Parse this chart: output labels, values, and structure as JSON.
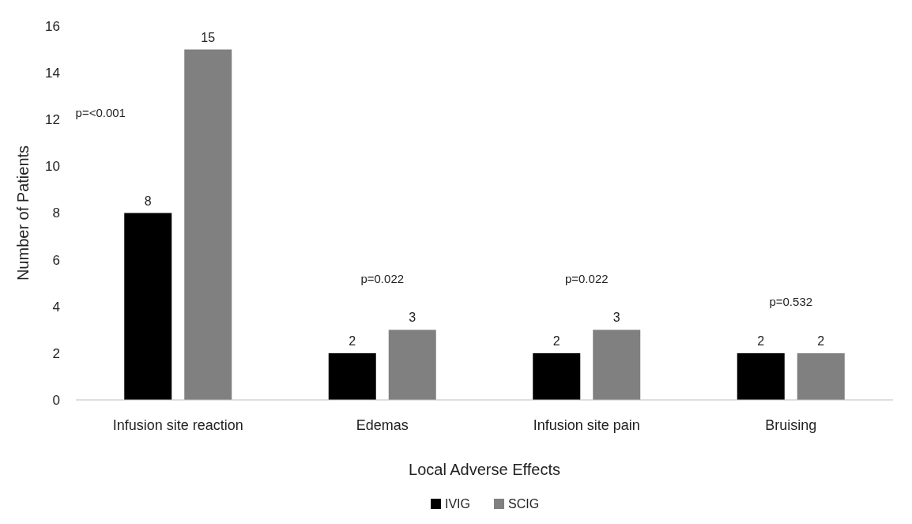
{
  "chart_data": {
    "type": "bar",
    "xlabel": "Local Adverse Effects",
    "ylabel": "Number of Patients",
    "categories": [
      "Infusion site reaction",
      "Edemas",
      "Infusion site pain",
      "Bruising"
    ],
    "series": [
      {
        "name": "IVIG",
        "color": "#000000",
        "values": [
          8,
          2,
          2,
          2
        ]
      },
      {
        "name": "SCIG",
        "color": "#808080",
        "values": [
          15,
          3,
          3,
          2
        ]
      }
    ],
    "ylim": [
      0,
      16
    ],
    "yticks": [
      0,
      2,
      4,
      6,
      8,
      10,
      12,
      14,
      16
    ],
    "grid": false,
    "legend": "bottom",
    "data_labels": true,
    "annotations": [
      "p=<0.001",
      "p=0.022",
      "p=0.022",
      "p=0.532"
    ]
  }
}
